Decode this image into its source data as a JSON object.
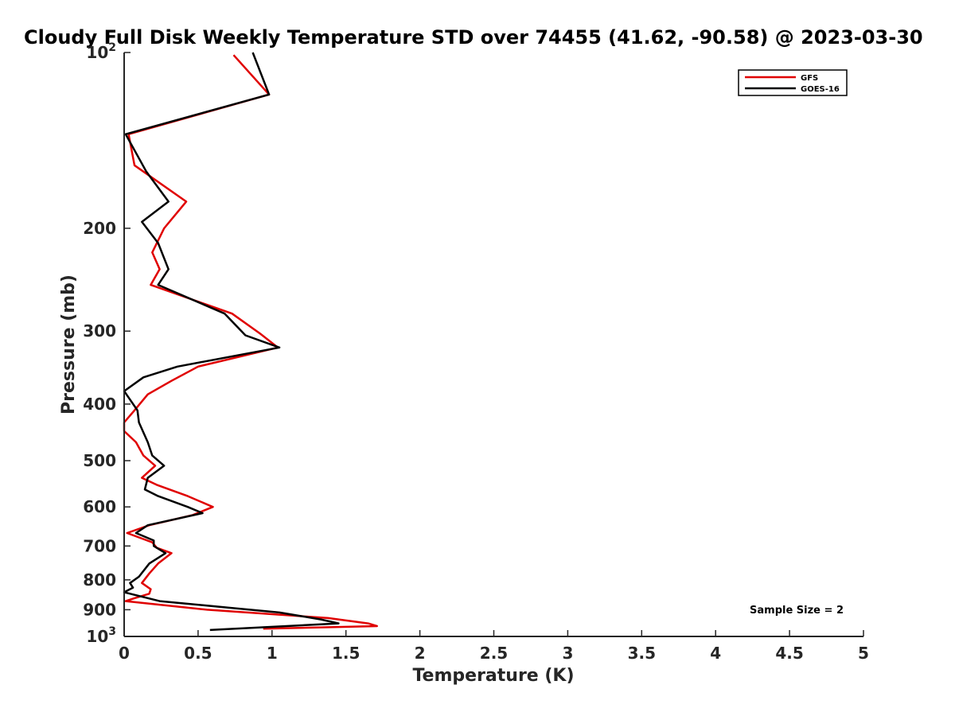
{
  "chart_data": {
    "type": "line",
    "title": "Cloudy Full Disk Weekly Temperature STD over 74455 (41.62, -90.58) @ 2023-03-30",
    "xlabel": "Temperature (K)",
    "ylabel": "Pressure (mb)",
    "xlim": [
      0,
      5
    ],
    "ylim": [
      100,
      1000
    ],
    "yscale": "log",
    "y_reversed": true,
    "x_ticks": [
      "0",
      "0.5",
      "1",
      "1.5",
      "2",
      "2.5",
      "3",
      "3.5",
      "4",
      "4.5",
      "5"
    ],
    "x_tick_values": [
      0,
      0.5,
      1,
      1.5,
      2,
      2.5,
      3,
      3.5,
      4,
      4.5,
      5
    ],
    "y_tick_values": [
      100,
      200,
      300,
      400,
      500,
      600,
      700,
      800,
      900,
      1000
    ],
    "y_tick_labels": [
      {
        "base": "10",
        "exp": "2"
      },
      {
        "base": "200",
        "exp": ""
      },
      {
        "base": "300",
        "exp": ""
      },
      {
        "base": "400",
        "exp": ""
      },
      {
        "base": "500",
        "exp": ""
      },
      {
        "base": "600",
        "exp": ""
      },
      {
        "base": "700",
        "exp": ""
      },
      {
        "base": "800",
        "exp": ""
      },
      {
        "base": "900",
        "exp": ""
      },
      {
        "base": "10",
        "exp": "3"
      }
    ],
    "legend_position": "top-right",
    "annotation": "Sample Size = 2",
    "series": [
      {
        "name": "GFS",
        "color": "#e00000",
        "x": [
          0.74,
          0.98,
          0.03,
          0.07,
          0.42,
          0.27,
          0.19,
          0.24,
          0.18,
          0.73,
          0.92,
          1.04,
          0.5,
          0.32,
          0.16,
          0.07,
          0.0,
          0.0,
          0.08,
          0.13,
          0.21,
          0.12,
          0.22,
          0.43,
          0.6,
          0.46,
          0.17,
          0.02,
          0.19,
          0.22,
          0.32,
          0.23,
          0.17,
          0.12,
          0.18,
          0.17,
          0.07,
          0.01,
          0.56,
          1.38,
          1.65,
          1.71,
          0.94
        ],
        "y": [
          101,
          118,
          138,
          156,
          180,
          200,
          220,
          235,
          250,
          280,
          303,
          320,
          345,
          365,
          385,
          410,
          430,
          445,
          465,
          490,
          510,
          535,
          550,
          575,
          600,
          620,
          645,
          665,
          690,
          705,
          720,
          750,
          780,
          810,
          830,
          845,
          860,
          870,
          900,
          930,
          950,
          960,
          970
        ]
      },
      {
        "name": "GOES-16",
        "color": "#000000",
        "x": [
          0.87,
          0.98,
          0.01,
          0.15,
          0.3,
          0.12,
          0.23,
          0.3,
          0.23,
          0.68,
          0.82,
          1.05,
          0.36,
          0.13,
          0.0,
          0.09,
          0.1,
          0.16,
          0.19,
          0.27,
          0.16,
          0.14,
          0.23,
          0.43,
          0.53,
          0.16,
          0.08,
          0.2,
          0.2,
          0.28,
          0.17,
          0.1,
          0.04,
          0.06,
          0.0,
          0.24,
          1.05,
          1.33,
          1.45,
          0.58
        ],
        "y": [
          100,
          118,
          138,
          160,
          180,
          195,
          212,
          235,
          250,
          280,
          305,
          320,
          345,
          360,
          380,
          410,
          430,
          465,
          490,
          510,
          535,
          560,
          575,
          600,
          615,
          645,
          665,
          685,
          700,
          720,
          750,
          790,
          810,
          825,
          840,
          870,
          910,
          935,
          950,
          975
        ]
      }
    ]
  }
}
